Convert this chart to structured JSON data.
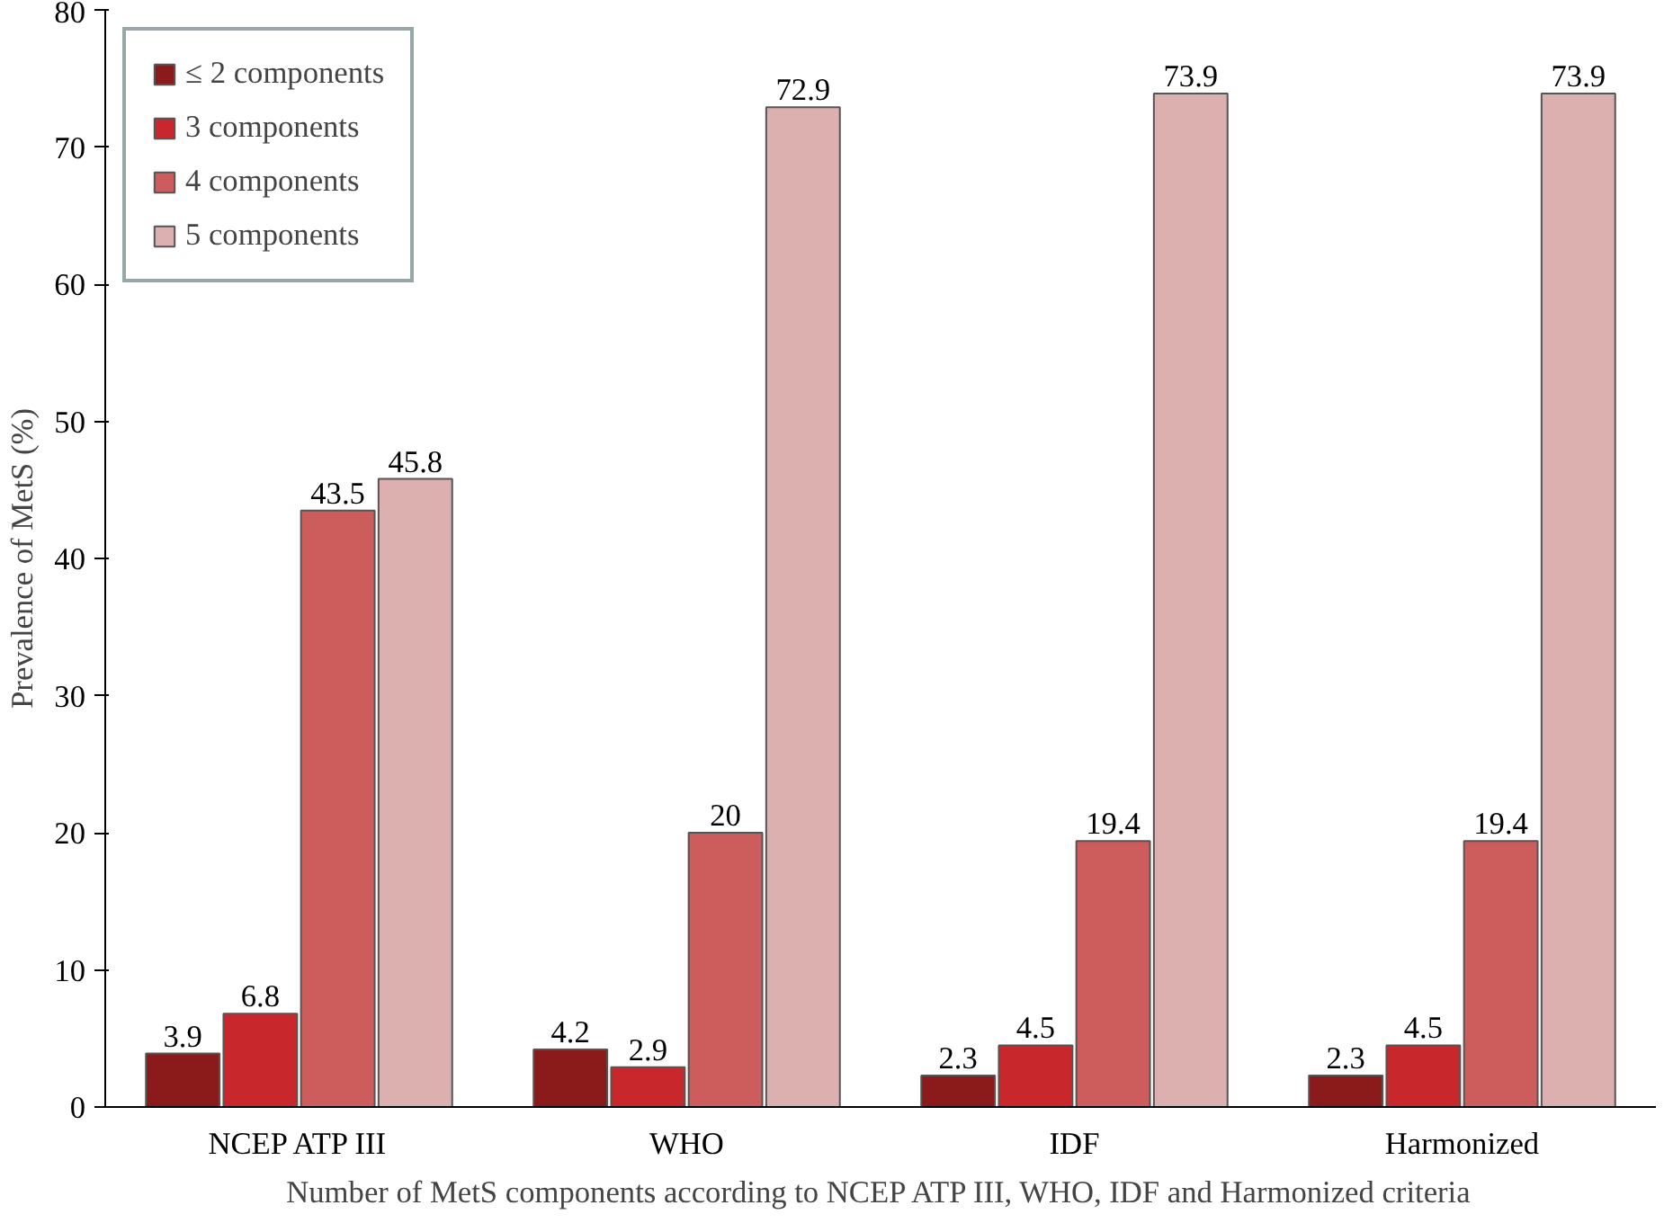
{
  "chart_data": {
    "type": "bar",
    "xlabel": "Number of MetS components according to NCEP ATP III, WHO, IDF and Harmonized criteria",
    "ylabel": "Prevalence of MetS (%)",
    "categories": [
      "NCEP ATP III",
      "WHO",
      "IDF",
      "Harmonized"
    ],
    "series": [
      {
        "name": "≤ 2 components",
        "color": "#8b1a1a",
        "values": [
          3.9,
          4.2,
          2.3,
          2.3
        ]
      },
      {
        "name": "3 components",
        "color": "#c8282c",
        "values": [
          6.8,
          2.9,
          4.5,
          4.5
        ]
      },
      {
        "name": "4 components",
        "color": "#cd5c5c",
        "values": [
          43.5,
          20,
          19.4,
          19.4
        ]
      },
      {
        "name": "5 components",
        "color": "#ddb0b0",
        "values": [
          45.8,
          72.9,
          73.9,
          73.9
        ]
      }
    ],
    "ylim": [
      0,
      80
    ],
    "yticks": [
      0,
      10,
      20,
      30,
      40,
      50,
      60,
      70,
      80
    ],
    "data_labels": true,
    "legend": "top left",
    "grid": false
  }
}
